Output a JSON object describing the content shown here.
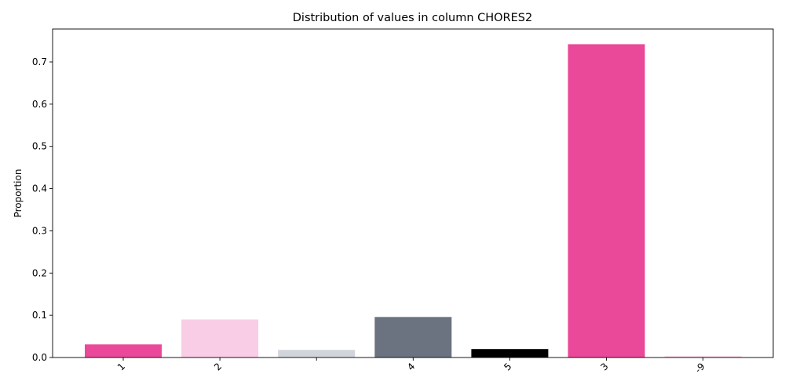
{
  "chart_data": {
    "type": "bar",
    "title": "Distribution of values in column CHORES2",
    "xlabel": "",
    "ylabel": "Proportion",
    "categories": [
      "1",
      "2",
      "",
      "4",
      "5",
      "3",
      "-9"
    ],
    "values": [
      0.031,
      0.09,
      0.018,
      0.096,
      0.02,
      0.742,
      0.003
    ],
    "colors": [
      "#ea4898",
      "#f9cde6",
      "#d1d5db",
      "#6b7280",
      "#000000",
      "#ea4898",
      "#f9cde6"
    ],
    "ylim": [
      0,
      0.778
    ],
    "yticks": [
      0.0,
      0.1,
      0.2,
      0.3,
      0.4,
      0.5,
      0.6,
      0.7
    ],
    "ytick_labels": [
      "0.0",
      "0.1",
      "0.2",
      "0.3",
      "0.4",
      "0.5",
      "0.6",
      "0.7"
    ],
    "grid": false,
    "legend": "none"
  }
}
